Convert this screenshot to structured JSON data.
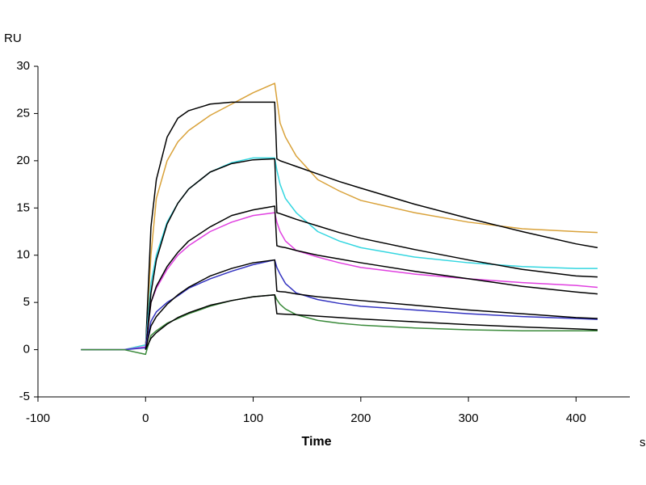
{
  "chart_data": {
    "type": "line",
    "y_label": "RU",
    "x_label": "Time",
    "x_unit": "s",
    "xlim": [
      -100,
      450
    ],
    "xticks": [
      -100,
      0,
      100,
      200,
      300,
      400
    ],
    "ylim": [
      -5,
      30
    ],
    "yticks": [
      -5,
      0,
      5,
      10,
      15,
      20,
      25,
      30
    ],
    "x": [
      -60,
      -40,
      -20,
      0,
      5,
      10,
      20,
      30,
      40,
      60,
      80,
      100,
      120,
      122,
      125,
      130,
      140,
      160,
      180,
      200,
      250,
      300,
      350,
      400,
      420
    ],
    "series": [
      {
        "color": "#d9a23a",
        "values": [
          0,
          0,
          0,
          0.5,
          10,
          16,
          20,
          22,
          23.2,
          24.8,
          26,
          27.2,
          28.2,
          26.5,
          24,
          22.5,
          20.5,
          18,
          16.8,
          15.8,
          14.5,
          13.5,
          12.8,
          12.5,
          12.4
        ]
      },
      {
        "color": "#000000",
        "values": [
          null,
          null,
          null,
          0,
          13,
          18,
          22.5,
          24.5,
          25.3,
          26,
          26.2,
          26.2,
          26.2,
          20.2,
          20,
          19.8,
          19.4,
          18.6,
          17.8,
          17.1,
          15.4,
          13.9,
          12.5,
          11.2,
          10.8
        ]
      },
      {
        "color": "#33d6e0",
        "values": [
          0,
          0,
          0,
          0.5,
          7,
          10,
          13.5,
          15.5,
          17,
          18.8,
          19.8,
          20.3,
          20.3,
          19,
          17.5,
          16,
          14.5,
          12.5,
          11.5,
          10.8,
          9.8,
          9.2,
          8.8,
          8.6,
          8.6
        ]
      },
      {
        "color": "#000000",
        "values": [
          null,
          null,
          null,
          0,
          6,
          9.5,
          13.3,
          15.5,
          17,
          18.8,
          19.7,
          20.1,
          20.2,
          14.5,
          14.4,
          14.2,
          13.8,
          13.1,
          12.4,
          11.8,
          10.6,
          9.5,
          8.5,
          7.8,
          7.7
        ]
      },
      {
        "color": "#e040e0",
        "values": [
          0,
          0,
          0,
          0.3,
          5,
          6.5,
          8.5,
          10,
          11,
          12.5,
          13.5,
          14.2,
          14.5,
          13.5,
          12.5,
          11.5,
          10.5,
          9.8,
          9.2,
          8.7,
          8,
          7.5,
          7.1,
          6.8,
          6.6
        ]
      },
      {
        "color": "#000000",
        "values": [
          null,
          null,
          null,
          0,
          5,
          6.7,
          8.8,
          10.3,
          11.5,
          13,
          14.2,
          14.8,
          15.2,
          11,
          10.9,
          10.8,
          10.5,
          10,
          9.6,
          9.2,
          8.3,
          7.5,
          6.7,
          6.1,
          5.9
        ]
      },
      {
        "color": "#3333c0",
        "values": [
          0,
          0,
          0,
          0.2,
          3,
          4,
          5,
          5.7,
          6.5,
          7.5,
          8.3,
          9,
          9.5,
          8.7,
          8,
          7,
          6,
          5.3,
          4.9,
          4.6,
          4.2,
          3.8,
          3.5,
          3.3,
          3.2
        ]
      },
      {
        "color": "#000000",
        "values": [
          null,
          null,
          null,
          0,
          2.5,
          3.5,
          4.8,
          5.8,
          6.6,
          7.8,
          8.6,
          9.2,
          9.5,
          6.2,
          6.15,
          6.1,
          5.9,
          5.6,
          5.4,
          5.2,
          4.7,
          4.2,
          3.8,
          3.4,
          3.3
        ]
      },
      {
        "color": "#3a8a3a",
        "values": [
          0,
          0,
          0,
          -0.5,
          1.5,
          2,
          2.8,
          3.3,
          3.8,
          4.6,
          5.2,
          5.6,
          5.8,
          5.3,
          4.8,
          4.3,
          3.7,
          3.1,
          2.8,
          2.6,
          2.3,
          2.1,
          2,
          2,
          2
        ]
      },
      {
        "color": "#000000",
        "values": [
          null,
          null,
          null,
          0,
          1.2,
          1.8,
          2.7,
          3.4,
          3.9,
          4.7,
          5.2,
          5.6,
          5.8,
          3.8,
          3.78,
          3.75,
          3.7,
          3.55,
          3.4,
          3.25,
          2.95,
          2.65,
          2.4,
          2.2,
          2.1
        ]
      }
    ]
  }
}
